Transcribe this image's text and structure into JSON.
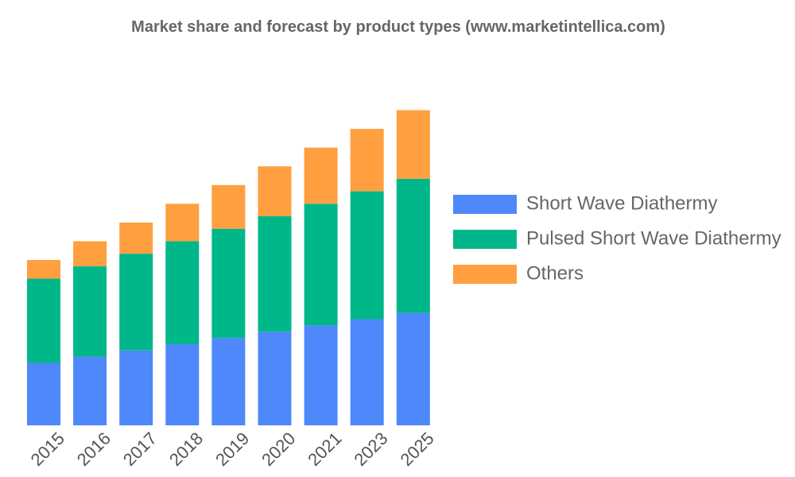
{
  "chart_data": {
    "type": "bar",
    "stacked": true,
    "title": "Market share and forecast by product types (www.marketintellica.com)",
    "xlabel": "",
    "ylabel": "",
    "categories": [
      "2015",
      "2016",
      "2017",
      "2018",
      "2019",
      "2020",
      "2021",
      "2023",
      "2025"
    ],
    "series": [
      {
        "name": "Short Wave Diathermy",
        "color": "#4e88fa",
        "values": [
          10.0,
          11.0,
          12.0,
          13.0,
          14.0,
          15.0,
          16.0,
          17.0,
          18.0
        ]
      },
      {
        "name": "Pulsed Short Wave Diathermy",
        "color": "#00b78a",
        "values": [
          13.5,
          14.5,
          15.5,
          16.5,
          17.5,
          18.5,
          19.5,
          20.5,
          21.5
        ]
      },
      {
        "name": "Others",
        "color": "#ff9f40",
        "values": [
          3.0,
          4.0,
          5.0,
          6.0,
          7.0,
          8.0,
          9.0,
          10.0,
          11.0
        ]
      }
    ],
    "ylim": [
      0,
      60
    ],
    "grid": false,
    "legend_position": "right"
  }
}
